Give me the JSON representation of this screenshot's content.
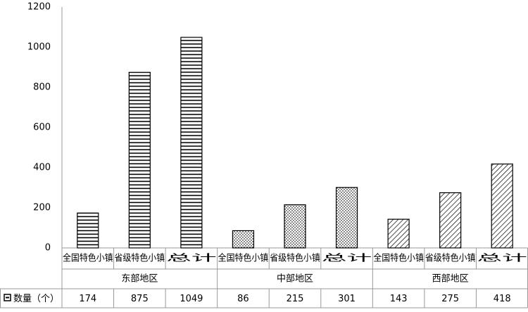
{
  "chart_data": {
    "type": "bar",
    "categories": [
      "全国特色小镇",
      "省级特色小镇",
      "总计",
      "全国特色小镇",
      "省级特色小镇",
      "总计",
      "全国特色小镇",
      "省级特色小镇",
      "总计"
    ],
    "groups": [
      "东部地区",
      "中部地区",
      "西部地区"
    ],
    "patterns": [
      "horizontal",
      "dots",
      "diagonal"
    ],
    "series": [
      {
        "name": "数量（个）",
        "color": "#000000",
        "values": [
          174,
          875,
          1049,
          86,
          215,
          301,
          143,
          275,
          418
        ]
      }
    ],
    "ylim": [
      0,
      1200
    ],
    "yticks": [
      0,
      200,
      400,
      600,
      800,
      1000,
      1200
    ],
    "grid": false
  }
}
